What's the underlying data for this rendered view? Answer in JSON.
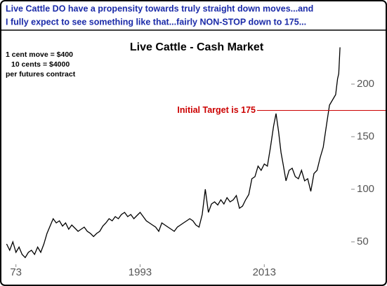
{
  "chart_data": {
    "type": "line",
    "header": [
      "Live Cattle DO have a propensity towards truly straight down moves...and",
      "I fully expect to see something like that...fairly NON-STOP down to 175..."
    ],
    "title": "Live Cattle - Cash Market",
    "notes": [
      "1 cent move = $400",
      "10 cents = $4000",
      "per futures contract"
    ],
    "target": {
      "label": "Initial Target is 175",
      "value": 175,
      "color": "#cc0000"
    },
    "color": "#000000",
    "x": [
      1971.5,
      1972,
      1972.5,
      1973,
      1973.5,
      1974,
      1974.5,
      1975,
      1975.5,
      1976,
      1976.5,
      1977,
      1977.5,
      1978,
      1978.5,
      1979,
      1979.5,
      1980,
      1980.5,
      1981,
      1981.5,
      1982,
      1982.5,
      1983,
      1983.5,
      1984,
      1984.5,
      1985,
      1985.5,
      1986,
      1986.5,
      1987,
      1987.5,
      1988,
      1988.5,
      1989,
      1989.5,
      1990,
      1990.5,
      1991,
      1991.5,
      1992,
      1992.5,
      1993,
      1993.5,
      1994,
      1994.5,
      1995,
      1995.5,
      1996,
      1996.5,
      1997,
      1997.5,
      1998,
      1998.5,
      1999,
      1999.5,
      2000,
      2000.5,
      2001,
      2001.5,
      2002,
      2002.5,
      2003,
      2003.5,
      2004,
      2004.5,
      2005,
      2005.5,
      2006,
      2006.5,
      2007,
      2007.5,
      2008,
      2008.5,
      2009,
      2009.5,
      2010,
      2010.5,
      2011,
      2011.5,
      2012,
      2012.5,
      2013,
      2013.5,
      2014,
      2014.5,
      2014.9,
      2015.3,
      2015.7,
      2016,
      2016.5,
      2017,
      2017.5,
      2018,
      2018.5,
      2019,
      2019.5,
      2020,
      2020.5,
      2021,
      2021.5,
      2022,
      2022.5,
      2023,
      2023.5,
      2024,
      2024.5,
      2024.8,
      2025,
      2025.2
    ],
    "values": [
      48,
      42,
      50,
      40,
      45,
      38,
      35,
      40,
      42,
      38,
      45,
      40,
      48,
      58,
      65,
      72,
      68,
      70,
      65,
      68,
      62,
      66,
      63,
      60,
      62,
      64,
      60,
      58,
      55,
      58,
      60,
      65,
      68,
      72,
      70,
      74,
      72,
      76,
      78,
      74,
      76,
      72,
      75,
      78,
      74,
      70,
      68,
      66,
      64,
      60,
      68,
      66,
      64,
      62,
      60,
      64,
      66,
      68,
      70,
      72,
      70,
      66,
      64,
      76,
      100,
      78,
      86,
      88,
      85,
      90,
      86,
      92,
      88,
      90,
      94,
      82,
      84,
      90,
      95,
      110,
      112,
      122,
      118,
      124,
      122,
      140,
      160,
      172,
      155,
      135,
      125,
      108,
      118,
      120,
      112,
      110,
      118,
      108,
      110,
      98,
      115,
      118,
      130,
      140,
      160,
      180,
      185,
      190,
      205,
      210,
      235
    ],
    "xlim": [
      1971,
      2027
    ],
    "xticks": [
      {
        "value": 1973,
        "label": "73"
      },
      1993,
      2013
    ],
    "ylim": [
      30,
      250
    ],
    "yticks": [
      50,
      100,
      150,
      200
    ]
  }
}
